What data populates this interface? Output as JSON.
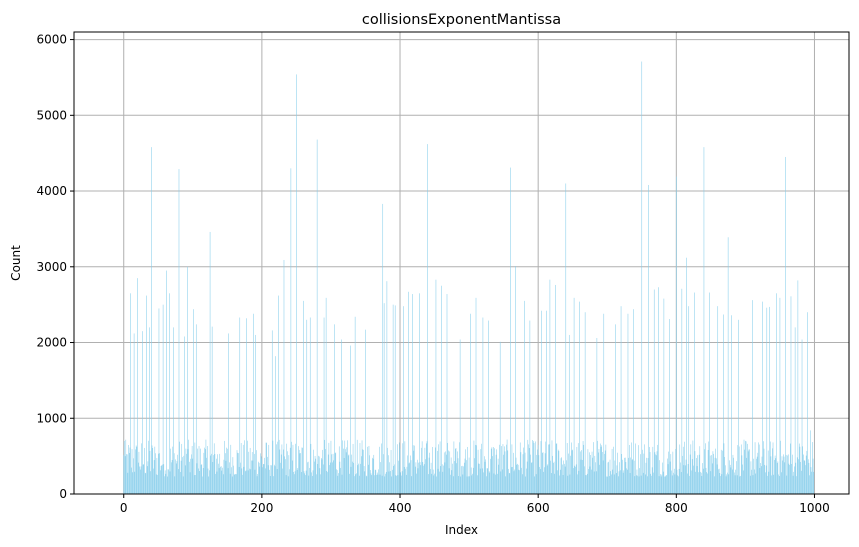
{
  "chart_data": {
    "type": "bar",
    "title": "collisionsExponentMantissa",
    "xlabel": "Index",
    "ylabel": "Count",
    "xlim": [
      -72,
      1050
    ],
    "ylim": [
      0,
      6100
    ],
    "xticks": [
      0,
      200,
      400,
      600,
      800,
      1000
    ],
    "yticks": [
      0,
      1000,
      2000,
      3000,
      4000,
      5000,
      6000
    ],
    "grid": true,
    "bar_color": "#87CEEB",
    "n_bars": 1000,
    "x_start": 0,
    "baseline_range": [
      230,
      720
    ],
    "peaks": [
      [
        1,
        700
      ],
      [
        10,
        2650
      ],
      [
        15,
        2120
      ],
      [
        20,
        2850
      ],
      [
        27,
        2150
      ],
      [
        33,
        2620
      ],
      [
        37,
        2200
      ],
      [
        40,
        4580
      ],
      [
        51,
        2450
      ],
      [
        57,
        2500
      ],
      [
        62,
        2950
      ],
      [
        66,
        2650
      ],
      [
        72,
        2200
      ],
      [
        80,
        4290
      ],
      [
        88,
        2080
      ],
      [
        92,
        3000
      ],
      [
        101,
        2440
      ],
      [
        105,
        2240
      ],
      [
        125,
        3460
      ],
      [
        128,
        2210
      ],
      [
        152,
        2120
      ],
      [
        168,
        2330
      ],
      [
        178,
        2320
      ],
      [
        188,
        2380
      ],
      [
        191,
        2100
      ],
      [
        215,
        2160
      ],
      [
        220,
        1820
      ],
      [
        224,
        2620
      ],
      [
        232,
        3090
      ],
      [
        242,
        4300
      ],
      [
        250,
        5540
      ],
      [
        260,
        2550
      ],
      [
        265,
        2300
      ],
      [
        270,
        2330
      ],
      [
        280,
        4680
      ],
      [
        290,
        2330
      ],
      [
        293,
        2590
      ],
      [
        305,
        2240
      ],
      [
        315,
        2040
      ],
      [
        328,
        1960
      ],
      [
        335,
        2340
      ],
      [
        350,
        2170
      ],
      [
        375,
        3830
      ],
      [
        377,
        2520
      ],
      [
        381,
        2810
      ],
      [
        390,
        2500
      ],
      [
        393,
        2490
      ],
      [
        405,
        2480
      ],
      [
        412,
        2670
      ],
      [
        418,
        2640
      ],
      [
        428,
        2650
      ],
      [
        440,
        4620
      ],
      [
        452,
        2830
      ],
      [
        460,
        2750
      ],
      [
        468,
        2640
      ],
      [
        487,
        2040
      ],
      [
        502,
        2380
      ],
      [
        510,
        2590
      ],
      [
        520,
        2330
      ],
      [
        528,
        2290
      ],
      [
        545,
        2010
      ],
      [
        560,
        4310
      ],
      [
        567,
        3010
      ],
      [
        580,
        2550
      ],
      [
        588,
        2290
      ],
      [
        605,
        2420
      ],
      [
        612,
        2420
      ],
      [
        617,
        2830
      ],
      [
        625,
        2760
      ],
      [
        640,
        4100
      ],
      [
        645,
        2100
      ],
      [
        652,
        2590
      ],
      [
        660,
        2540
      ],
      [
        668,
        2400
      ],
      [
        685,
        2060
      ],
      [
        695,
        2380
      ],
      [
        712,
        2240
      ],
      [
        720,
        2480
      ],
      [
        730,
        2380
      ],
      [
        738,
        2440
      ],
      [
        750,
        5710
      ],
      [
        760,
        4080
      ],
      [
        768,
        2700
      ],
      [
        774,
        2730
      ],
      [
        782,
        2580
      ],
      [
        790,
        2310
      ],
      [
        800,
        4190
      ],
      [
        808,
        2710
      ],
      [
        815,
        3120
      ],
      [
        818,
        2480
      ],
      [
        826,
        2660
      ],
      [
        840,
        4580
      ],
      [
        848,
        2660
      ],
      [
        860,
        2480
      ],
      [
        868,
        2370
      ],
      [
        875,
        3390
      ],
      [
        880,
        2360
      ],
      [
        890,
        2300
      ],
      [
        910,
        2560
      ],
      [
        925,
        2540
      ],
      [
        931,
        2460
      ],
      [
        935,
        2470
      ],
      [
        945,
        2650
      ],
      [
        950,
        2590
      ],
      [
        958,
        4450
      ],
      [
        966,
        2610
      ],
      [
        972,
        2200
      ],
      [
        976,
        2820
      ],
      [
        982,
        2040
      ],
      [
        990,
        2400
      ],
      [
        994,
        840
      ]
    ]
  }
}
